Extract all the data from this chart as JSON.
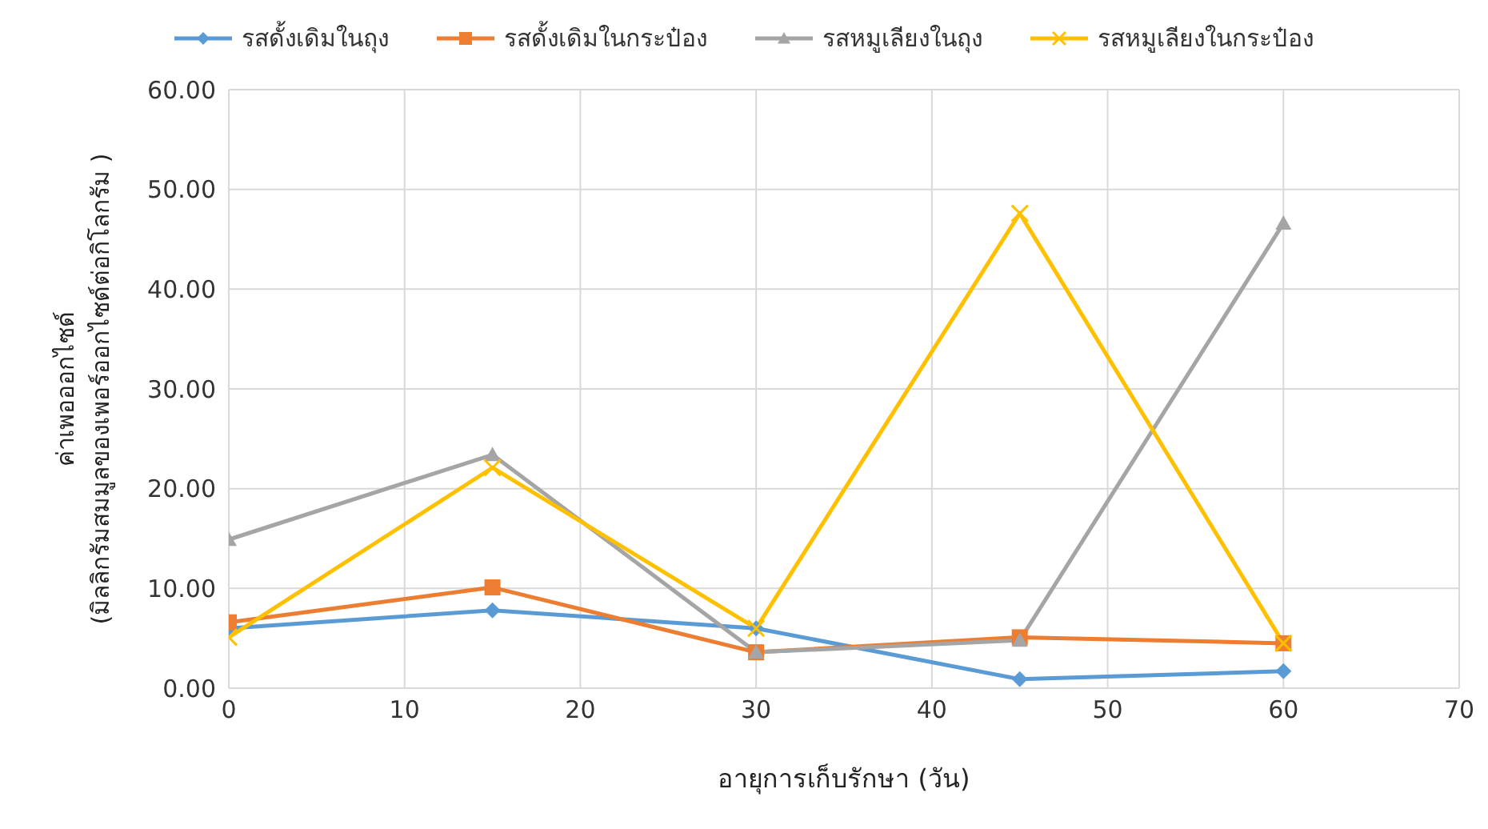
{
  "chart_data": {
    "type": "line",
    "xlabel": "อายุการเก็บรักษา (วัน)",
    "ylabel": "ค่าเพอออกไซด์\n(มิลลิกรัมสมมูลของเพอร์ออกไซด์ต่อกิโลกรัม )",
    "x": [
      0,
      15,
      30,
      45,
      60
    ],
    "series": [
      {
        "name": "รสดั้งเดิมในถุง",
        "color": "#5b9bd5",
        "marker": "diamond",
        "values": [
          6.0,
          7.8,
          6.0,
          0.9,
          1.7
        ]
      },
      {
        "name": "รสดั้งเดิมในกระป๋อง",
        "color": "#ed7d31",
        "marker": "square",
        "values": [
          6.6,
          10.1,
          3.6,
          5.1,
          4.5
        ]
      },
      {
        "name": "รสหมูเลียงในถุง",
        "color": "#a5a5a5",
        "marker": "triangle",
        "values": [
          14.9,
          23.4,
          3.6,
          4.8,
          46.6
        ]
      },
      {
        "name": "รสหมูเลียงในกระป๋อง",
        "color": "#ffc000",
        "marker": "cross",
        "values": [
          5.1,
          22.1,
          6.0,
          47.6,
          4.5
        ]
      }
    ],
    "xlim": [
      0,
      70
    ],
    "xticks": [
      0,
      10,
      20,
      30,
      40,
      50,
      60,
      70
    ],
    "ylim": [
      0,
      60
    ],
    "yticks": [
      {
        "value": 0,
        "label": "0.00"
      },
      {
        "value": 10,
        "label": "10.00"
      },
      {
        "value": 20,
        "label": "20.00"
      },
      {
        "value": 30,
        "label": "30.00"
      },
      {
        "value": 40,
        "label": "40.00"
      },
      {
        "value": 50,
        "label": "50.00"
      },
      {
        "value": 60,
        "label": "60.00"
      }
    ],
    "grid": true,
    "legend": "top",
    "line_style": "solid"
  }
}
